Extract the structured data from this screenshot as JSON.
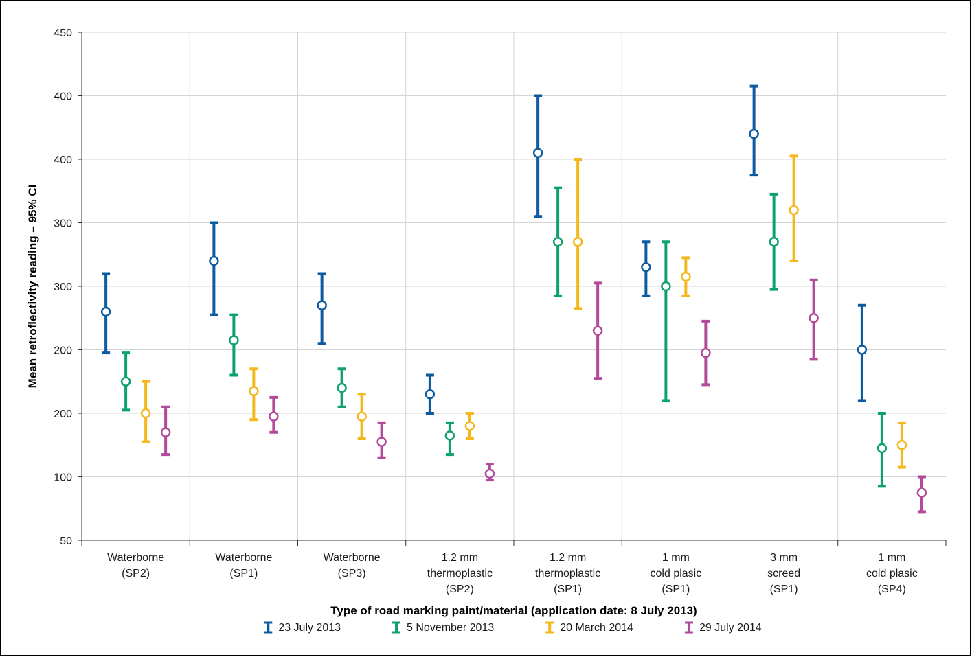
{
  "chart_data": {
    "type": "errorbar",
    "xlabel": "Type of road marking paint/material (application date: 8 July 2013)",
    "ylabel": "Mean retroflectivity reading – 95% CI",
    "y_tick_labels": [
      "50",
      "100",
      "200",
      "200",
      "300",
      "300",
      "400",
      "400",
      "450"
    ],
    "y_tick_positions": [
      0,
      1,
      2,
      3,
      4,
      5,
      6,
      7,
      8
    ],
    "ylim": [
      0,
      8
    ],
    "grid": true,
    "legend_position": "bottom",
    "categories": [
      [
        "Waterborne",
        "(SP2)"
      ],
      [
        "Waterborne",
        "(SP1)"
      ],
      [
        "Waterborne",
        "(SP3)"
      ],
      [
        "1.2 mm",
        "thermoplastic",
        "(SP2)"
      ],
      [
        "1.2 mm",
        "thermoplastic",
        "(SP1)"
      ],
      [
        "1 mm",
        "cold plasic",
        "(SP1)"
      ],
      [
        "3 mm",
        "screed",
        "(SP1)"
      ],
      [
        "1 mm",
        "cold plasic",
        "(SP4)"
      ]
    ],
    "series": [
      {
        "name": "23 July 2013",
        "color": "#0d5aa0",
        "mean": [
          3.6,
          4.4,
          3.7,
          2.3,
          6.1,
          4.3,
          6.4,
          3.0
        ],
        "lower": [
          2.95,
          3.55,
          3.1,
          2.0,
          5.1,
          3.85,
          5.75,
          2.2
        ],
        "upper": [
          4.2,
          5.0,
          4.2,
          2.6,
          7.0,
          4.7,
          7.15,
          3.7
        ]
      },
      {
        "name": "5 November 2013",
        "color": "#0ea06e",
        "mean": [
          2.5,
          3.15,
          2.4,
          1.65,
          4.7,
          4.0,
          4.7,
          1.45
        ],
        "lower": [
          2.05,
          2.6,
          2.1,
          1.35,
          3.85,
          2.2,
          3.95,
          0.85
        ],
        "upper": [
          2.95,
          3.55,
          2.7,
          1.85,
          5.55,
          4.7,
          5.45,
          2.0
        ]
      },
      {
        "name": "20 March 2014",
        "color": "#f4b71c",
        "mean": [
          2.0,
          2.35,
          1.95,
          1.8,
          4.7,
          4.15,
          5.2,
          1.5
        ],
        "lower": [
          1.55,
          1.9,
          1.6,
          1.6,
          3.65,
          3.85,
          4.4,
          1.15
        ],
        "upper": [
          2.5,
          2.7,
          2.3,
          2.0,
          6.0,
          4.45,
          6.05,
          1.85
        ]
      },
      {
        "name": "29 July 2014",
        "color": "#b24a9b",
        "mean": [
          1.7,
          1.95,
          1.55,
          1.05,
          3.3,
          2.95,
          3.5,
          0.75
        ],
        "lower": [
          1.35,
          1.7,
          1.3,
          0.95,
          2.55,
          2.45,
          2.85,
          0.45
        ],
        "upper": [
          2.1,
          2.25,
          1.85,
          1.2,
          4.05,
          3.45,
          4.1,
          1.0
        ]
      }
    ]
  }
}
